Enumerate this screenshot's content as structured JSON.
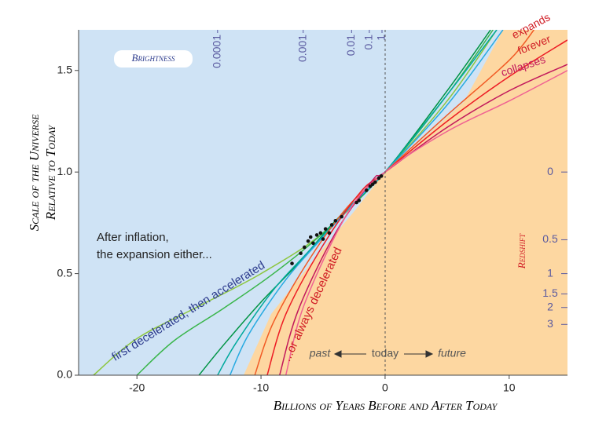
{
  "chart_data": {
    "type": "line",
    "y_label_lines": [
      "Scale of the Universe",
      "Relative to Today"
    ],
    "x_label": "Billions of Years Before and After Today",
    "xlim": [
      -24.7,
      14.7
    ],
    "ylim": [
      0,
      1.7
    ],
    "xticks": [
      -20,
      -10,
      0,
      10
    ],
    "yticks": [
      {
        "value": 0,
        "label": "0.0"
      },
      0.5,
      {
        "value": 1,
        "label": "1.0"
      },
      1.5
    ],
    "series": [
      {
        "color": "#8dc63f",
        "x": [
          -23.5,
          -20,
          -15,
          -10,
          -5,
          0,
          5,
          9
        ],
        "values": [
          0,
          0.18,
          0.34,
          0.5,
          0.7,
          1,
          1.35,
          1.7
        ]
      },
      {
        "color": "#39b54a",
        "x": [
          -20,
          -17,
          -13,
          -9,
          -5,
          0,
          5,
          8.7
        ],
        "values": [
          0,
          0.17,
          0.33,
          0.5,
          0.7,
          1,
          1.38,
          1.7
        ]
      },
      {
        "color": "#009444",
        "x": [
          -15,
          -13,
          -10,
          -7,
          -4,
          0,
          5,
          8.5
        ],
        "values": [
          0,
          0.15,
          0.36,
          0.55,
          0.76,
          1,
          1.4,
          1.7
        ]
      },
      {
        "color": "#00a99d",
        "x": [
          -13.5,
          -12,
          -9,
          -6,
          -3,
          0,
          5,
          9
        ],
        "values": [
          0,
          0.16,
          0.42,
          0.62,
          0.82,
          1,
          1.38,
          1.7
        ]
      },
      {
        "color": "#27aae1",
        "x": [
          -12.5,
          -11,
          -8,
          -5,
          -2,
          0,
          5,
          9.5
        ],
        "values": [
          0,
          0.2,
          0.47,
          0.68,
          0.88,
          1,
          1.33,
          1.7
        ]
      },
      {
        "color": "#f15a24",
        "x": [
          -10.5,
          -9,
          -6,
          -3,
          0,
          5,
          10,
          12
        ],
        "values": [
          0,
          0.26,
          0.58,
          0.83,
          1,
          1.28,
          1.55,
          1.7
        ]
      },
      {
        "color": "#ed1c24",
        "x": [
          -9.5,
          -8,
          -5,
          -2,
          0,
          5,
          10,
          14.7
        ],
        "values": [
          0,
          0.3,
          0.64,
          0.9,
          1,
          1.25,
          1.47,
          1.65
        ]
      },
      {
        "color": "#c2185b",
        "x": [
          -8.5,
          -7,
          -4,
          -1,
          0,
          5,
          10,
          14.7
        ],
        "values": [
          0,
          0.32,
          0.7,
          0.96,
          1,
          1.22,
          1.4,
          1.53
        ]
      },
      {
        "color": "#f06292",
        "x": [
          -8,
          -6.5,
          -3,
          0,
          5,
          10,
          14.7
        ],
        "values": [
          0,
          0.35,
          0.8,
          1,
          1.2,
          1.35,
          1.5
        ]
      }
    ],
    "points": {
      "color": "#111111",
      "x": [
        -7.5,
        -6.8,
        -6.5,
        -6.2,
        -6,
        -5.8,
        -5.5,
        -5.2,
        -5,
        -4.8,
        -4.5,
        -4.3,
        -4,
        -3.5,
        -2.3,
        -2.1,
        -1.5,
        -1.2,
        -1,
        -0.8,
        -0.5,
        -0.3
      ],
      "values": [
        0.55,
        0.6,
        0.63,
        0.66,
        0.68,
        0.65,
        0.69,
        0.7,
        0.67,
        0.72,
        0.7,
        0.74,
        0.76,
        0.78,
        0.85,
        0.86,
        0.91,
        0.93,
        0.94,
        0.95,
        0.97,
        0.98
      ]
    },
    "brightness": {
      "label": "Brightness",
      "ticks": [
        {
          "value": -13.5,
          "label": "0.0001"
        },
        {
          "value": -6.6,
          "label": "0.001"
        },
        {
          "value": -2.7,
          "label": "0.01"
        },
        {
          "value": -1.27,
          "label": "0.1"
        },
        {
          "value": -0.25,
          "label": "1"
        }
      ]
    },
    "redshift": {
      "label": "Redshift",
      "ticks": [
        {
          "value": 1,
          "label": "0"
        },
        {
          "value": 0.6667,
          "label": "0.5"
        },
        {
          "value": 0.5,
          "label": "1"
        },
        {
          "value": 0.4,
          "label": "1.5"
        },
        {
          "value": 0.3333,
          "label": "2"
        },
        {
          "value": 0.25,
          "label": "3"
        }
      ]
    },
    "annotations": {
      "intro": [
        "After inflation,",
        "the expansion either..."
      ],
      "accelerated": "first decelerated, then accelerated",
      "decelerated": "...or always decelerated",
      "expands": [
        "expands",
        "forever"
      ],
      "collapses": "collapses",
      "past": "past",
      "today": "today",
      "future": "future"
    }
  }
}
